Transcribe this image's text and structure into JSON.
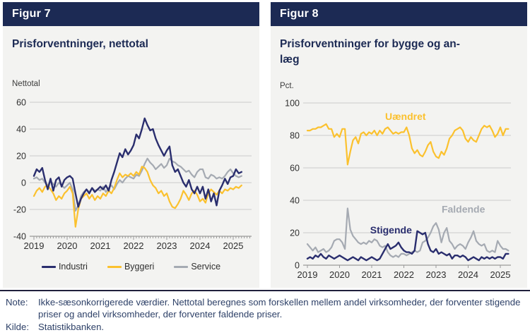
{
  "figure7": {
    "header": "Figur 7",
    "title": "Prisforventninger, nettotal",
    "unit_label": "Nettotal"
  },
  "figure8": {
    "header": "Figur 8",
    "title_lines": [
      "Prisforventninger for bygge og an-",
      "læg"
    ],
    "unit_label": "Pct."
  },
  "note": {
    "label": "Note:",
    "text": "Ikke-sæsonkorrigerede værdier. Nettotal beregnes som forskellen mellem andel virksomheder, der forventer stigende priser og andel virksomheder, der forventer faldende priser."
  },
  "source": {
    "label": "Kilde:",
    "text": "Statistikbanken."
  },
  "colors": {
    "header_navy": "#1c2a54",
    "line_navy": "#2a2e6e",
    "line_yellow": "#fbc12e",
    "line_gray": "#a5aab2",
    "grid": "#cbcbcb",
    "axis": "#9a9a9a",
    "axis_text": "#2f2f2f"
  },
  "chart_data": [
    {
      "type": "line",
      "title": "Prisforventninger, nettotal",
      "ylabel": "Nettotal",
      "x_start": "2019-01",
      "x_freq": "monthly",
      "x_tick_labels": [
        "2019",
        "2020",
        "2021",
        "2022",
        "2023",
        "2024",
        "2025"
      ],
      "ylim": [
        -40,
        60
      ],
      "yticks": [
        60,
        40,
        20,
        0,
        -20,
        -40
      ],
      "grid": true,
      "legend_position": "bottom",
      "series": [
        {
          "name": "Service",
          "color": "#a5aab2",
          "values": [
            3,
            4,
            2,
            3,
            0,
            -2,
            1,
            -1,
            -3,
            0,
            -2,
            -4,
            -2,
            0,
            -5,
            -21,
            -17,
            -10,
            -7,
            -5,
            -7,
            -4,
            -6,
            -5,
            -6,
            -3,
            -7,
            -4,
            -2,
            -5,
            -1,
            2,
            0,
            3,
            5,
            4,
            3,
            6,
            5,
            9,
            14,
            18,
            15,
            13,
            10,
            12,
            14,
            11,
            13,
            18,
            16,
            15,
            13,
            12,
            10,
            8,
            9,
            6,
            4,
            8,
            10,
            10,
            4,
            3,
            6,
            5,
            3,
            4,
            3,
            5,
            8,
            10,
            7,
            5,
            4,
            5
          ]
        },
        {
          "name": "Byggeri",
          "color": "#fbc12e",
          "values": [
            -10,
            -6,
            -4,
            -7,
            -3,
            -2,
            -5,
            -8,
            -13,
            -10,
            -12,
            -8,
            -6,
            -3,
            -8,
            -33,
            -20,
            -12,
            -10,
            -8,
            -12,
            -9,
            -13,
            -10,
            -12,
            -8,
            -10,
            -6,
            -8,
            -4,
            2,
            7,
            4,
            6,
            5,
            7,
            5,
            8,
            6,
            12,
            11,
            8,
            2,
            -2,
            -4,
            -8,
            -6,
            -10,
            -8,
            -14,
            -18,
            -19,
            -16,
            -12,
            -6,
            -9,
            -13,
            -8,
            -6,
            -9,
            -14,
            -12,
            -15,
            -8,
            -5,
            -7,
            -9,
            -6,
            -8,
            -5,
            -6,
            -4,
            -5,
            -3,
            -4,
            -2
          ]
        },
        {
          "name": "Industri",
          "color": "#2a2e6e",
          "values": [
            5,
            10,
            8,
            11,
            2,
            -5,
            3,
            -6,
            2,
            4,
            -3,
            2,
            4,
            5,
            3,
            -8,
            -18,
            -12,
            -8,
            -5,
            -8,
            -4,
            -7,
            -5,
            -3,
            -5,
            -2,
            -6,
            2,
            8,
            15,
            22,
            19,
            25,
            21,
            24,
            28,
            36,
            33,
            40,
            48,
            43,
            39,
            40,
            33,
            28,
            24,
            20,
            24,
            27,
            13,
            8,
            10,
            5,
            0,
            -3,
            2,
            -5,
            -8,
            -3,
            -8,
            -3,
            -12,
            -5,
            -14,
            -8,
            -17,
            -6,
            -2,
            3,
            -1,
            4,
            5,
            10,
            7,
            8
          ]
        }
      ]
    },
    {
      "type": "line",
      "title": "Prisforventninger for bygge og anlæg",
      "ylabel": "Pct.",
      "x_start": "2019-01",
      "x_freq": "monthly",
      "x_tick_labels": [
        "2019",
        "2020",
        "2021",
        "2022",
        "2023",
        "2024",
        "2025"
      ],
      "ylim": [
        0,
        100
      ],
      "yticks": [
        100,
        80,
        60,
        40,
        20,
        0
      ],
      "grid": true,
      "legend_position": "in-chart-labels",
      "series": [
        {
          "name": "Faldende",
          "color": "#a5aab2",
          "values": [
            13,
            11,
            9,
            11,
            8,
            9,
            10,
            8,
            9,
            11,
            15,
            16,
            16,
            14,
            10,
            35,
            22,
            18,
            16,
            14,
            13,
            14,
            13,
            15,
            14,
            16,
            15,
            12,
            11,
            12,
            8,
            6,
            5,
            6,
            5,
            7,
            7,
            6,
            7,
            8,
            9,
            8,
            9,
            14,
            15,
            17,
            20,
            24,
            26,
            22,
            14,
            20,
            23,
            15,
            13,
            10,
            12,
            13,
            12,
            10,
            14,
            17,
            21,
            15,
            13,
            12,
            13,
            9,
            8,
            9,
            8,
            15,
            12,
            10,
            10,
            9
          ]
        },
        {
          "name": "Uændret",
          "color": "#fbc12e",
          "values": [
            83,
            83,
            84,
            84,
            85,
            85,
            86,
            87,
            84,
            84,
            79,
            81,
            79,
            84,
            84,
            62,
            70,
            77,
            79,
            75,
            81,
            82,
            80,
            82,
            81,
            83,
            80,
            83,
            81,
            84,
            85,
            83,
            81,
            82,
            81,
            82,
            82,
            85,
            80,
            72,
            69,
            71,
            68,
            67,
            70,
            74,
            76,
            70,
            67,
            66,
            70,
            68,
            72,
            78,
            80,
            83,
            84,
            85,
            83,
            78,
            76,
            79,
            77,
            76,
            80,
            84,
            86,
            85,
            86,
            83,
            79,
            81,
            85,
            80,
            84,
            84
          ]
        },
        {
          "name": "Stigende",
          "color": "#2a2e6e",
          "values": [
            4,
            5,
            4,
            6,
            5,
            7,
            5,
            4,
            6,
            5,
            4,
            5,
            6,
            5,
            4,
            3,
            4,
            5,
            4,
            3,
            5,
            4,
            3,
            4,
            5,
            4,
            3,
            4,
            7,
            10,
            13,
            10,
            11,
            12,
            14,
            11,
            9,
            8,
            8,
            7,
            9,
            21,
            20,
            19,
            20,
            13,
            9,
            8,
            10,
            7,
            8,
            7,
            6,
            7,
            4,
            6,
            6,
            5,
            6,
            5,
            3,
            4,
            5,
            4,
            3,
            5,
            4,
            5,
            4,
            5,
            4,
            5,
            5,
            4,
            7,
            7
          ]
        }
      ],
      "annotations": [
        {
          "text": "Uændret",
          "x": 2022.05,
          "y": 89.5,
          "color": "#fbc12e"
        },
        {
          "text": "Stigende",
          "x": 2021.6,
          "y": 19.5,
          "color": "#2a2e6e"
        },
        {
          "text": "Faldende",
          "x": 2023.85,
          "y": 32.5,
          "color": "#a5aab2"
        }
      ]
    }
  ]
}
